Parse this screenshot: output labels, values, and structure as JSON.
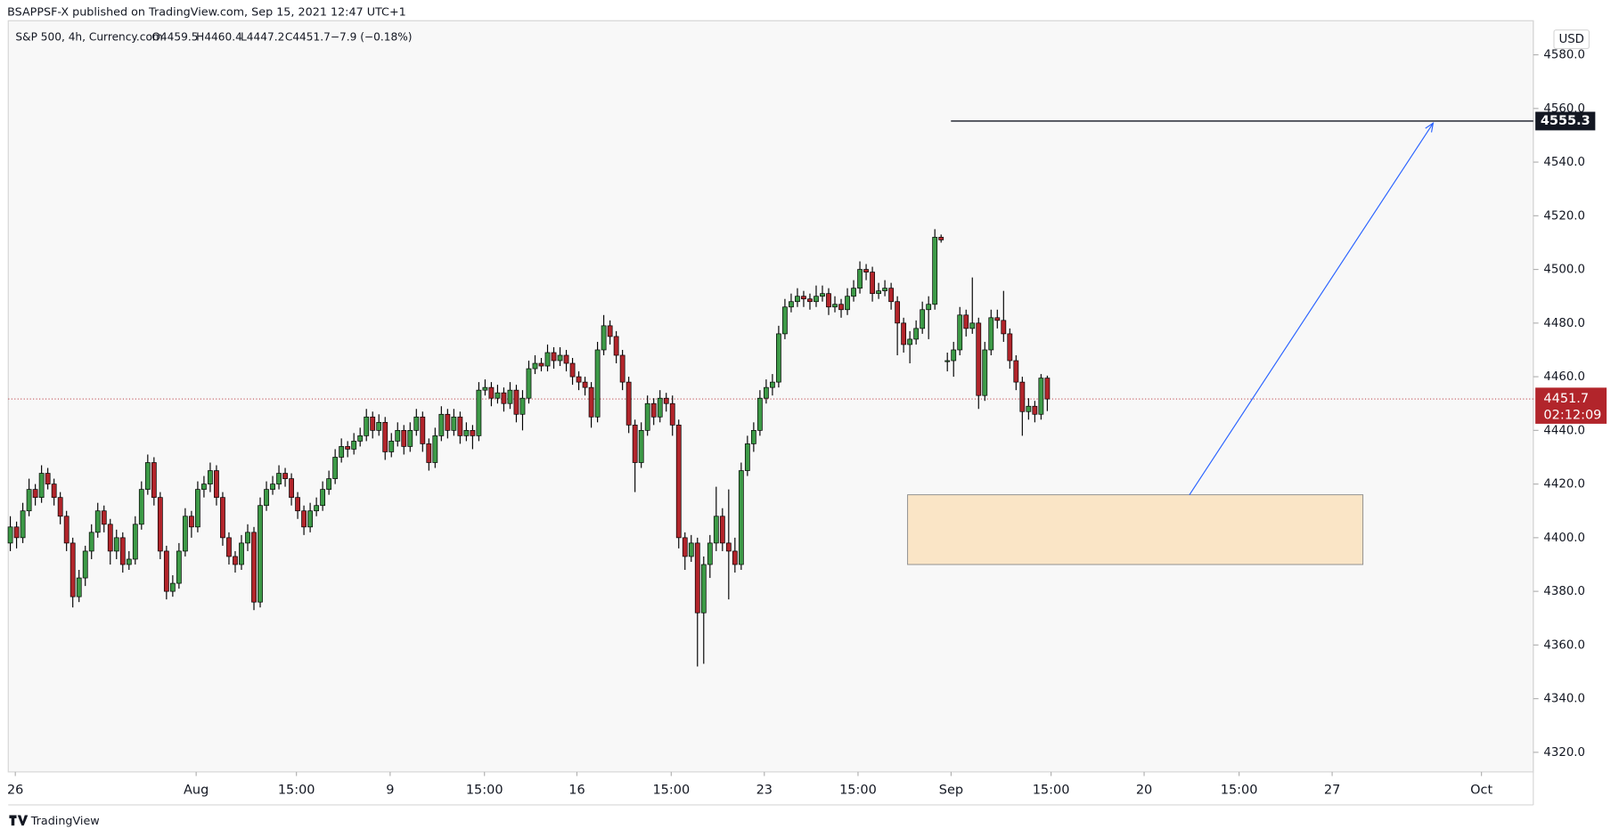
{
  "header": {
    "text": "BSAPPSF-X published on TradingView.com, Sep 15, 2021 12:47 UTC+1"
  },
  "footer": {
    "brand": "TradingView"
  },
  "chart_data": {
    "type": "candlestick",
    "symbol": "S&P 500, 4h, Currency.com",
    "open_label": "O4459.5",
    "high_label": "H4460.4",
    "low_label": "L4447.2",
    "close_label": "C4451.7",
    "change_label": "−7.9 (−0.18%)",
    "currency": "USD",
    "countdown": "02:12:09",
    "last_price": 4451.7,
    "target": 4555.3,
    "zone": {
      "high": 4416,
      "low": 4390
    },
    "up_color": "#3d9a47",
    "down_color": "#b2252b",
    "zone_color": "#fae5c6",
    "arrow_color": "#2962ff",
    "ylim": [
      4312.7,
      4592.7
    ],
    "yticks": [
      {
        "value": 4320,
        "label": "4320.0"
      },
      {
        "value": 4340,
        "label": "4340.0"
      },
      {
        "value": 4360,
        "label": "4360.0"
      },
      {
        "value": 4380,
        "label": "4380.0"
      },
      {
        "value": 4400,
        "label": "4400.0"
      },
      {
        "value": 4420,
        "label": "4420.0"
      },
      {
        "value": 4440,
        "label": "4440.0"
      },
      {
        "value": 4460,
        "label": "4460.0"
      },
      {
        "value": 4480,
        "label": "4480.0"
      },
      {
        "value": 4500,
        "label": "4500.0"
      },
      {
        "value": 4520,
        "label": "4520.0"
      },
      {
        "value": 4540,
        "label": "4540.0"
      },
      {
        "value": 4560,
        "label": "4560.0"
      },
      {
        "value": 4580,
        "label": "4580.0"
      }
    ],
    "xlim": [
      -0.33,
      243.8
    ],
    "xticks": [
      {
        "value": 0.8,
        "label": "26"
      },
      {
        "value": 29.75,
        "label": "Aug"
      },
      {
        "value": 45.8,
        "label": "15:00"
      },
      {
        "value": 60.8,
        "label": "9"
      },
      {
        "value": 75.9,
        "label": "15:00"
      },
      {
        "value": 90.7,
        "label": "16"
      },
      {
        "value": 105.8,
        "label": "15:00"
      },
      {
        "value": 120.7,
        "label": "23"
      },
      {
        "value": 135.7,
        "label": "15:00"
      },
      {
        "value": 150.6,
        "label": "Sep"
      },
      {
        "value": 166.6,
        "label": "15:00"
      },
      {
        "value": 181.5,
        "label": "20"
      },
      {
        "value": 196.7,
        "label": "15:00"
      },
      {
        "value": 211.6,
        "label": "27"
      },
      {
        "value": 235.5,
        "label": "Oct"
      }
    ],
    "candles": [
      [
        4398,
        4408,
        4395,
        4404
      ],
      [
        4404,
        4406,
        4396,
        4400
      ],
      [
        4400,
        4413,
        4398,
        4410
      ],
      [
        4410,
        4422,
        4408,
        4418
      ],
      [
        4418,
        4420,
        4412,
        4415
      ],
      [
        4415,
        4427,
        4413,
        4424
      ],
      [
        4424,
        4426,
        4418,
        4420
      ],
      [
        4420,
        4422,
        4412,
        4415
      ],
      [
        4415,
        4417,
        4405,
        4408
      ],
      [
        4408,
        4410,
        4395,
        4398
      ],
      [
        4398,
        4400,
        4374,
        4378
      ],
      [
        4378,
        4388,
        4376,
        4385
      ],
      [
        4385,
        4397,
        4382,
        4395
      ],
      [
        4395,
        4405,
        4392,
        4402
      ],
      [
        4402,
        4413,
        4400,
        4410
      ],
      [
        4410,
        4412,
        4402,
        4405
      ],
      [
        4405,
        4407,
        4390,
        4395
      ],
      [
        4395,
        4403,
        4392,
        4400
      ],
      [
        4400,
        4402,
        4387,
        4390
      ],
      [
        4390,
        4395,
        4388,
        4392
      ],
      [
        4392,
        4408,
        4390,
        4405
      ],
      [
        4405,
        4421,
        4403,
        4418
      ],
      [
        4418,
        4431,
        4416,
        4428
      ],
      [
        4428,
        4430,
        4412,
        4415
      ],
      [
        4415,
        4417,
        4392,
        4395
      ],
      [
        4395,
        4397,
        4377,
        4380
      ],
      [
        4380,
        4386,
        4378,
        4383
      ],
      [
        4383,
        4398,
        4381,
        4395
      ],
      [
        4395,
        4411,
        4393,
        4408
      ],
      [
        4408,
        4410,
        4400,
        4404
      ],
      [
        4404,
        4421,
        4402,
        4418
      ],
      [
        4418,
        4423,
        4415,
        4420
      ],
      [
        4420,
        4428,
        4417,
        4425
      ],
      [
        4425,
        4427,
        4412,
        4415
      ],
      [
        4415,
        4417,
        4397,
        4400
      ],
      [
        4400,
        4402,
        4390,
        4393
      ],
      [
        4393,
        4395,
        4387,
        4390
      ],
      [
        4390,
        4401,
        4388,
        4398
      ],
      [
        4398,
        4405,
        4395,
        4402
      ],
      [
        4402,
        4404,
        4373,
        4376
      ],
      [
        4376,
        4415,
        4374,
        4412
      ],
      [
        4412,
        4421,
        4410,
        4418
      ],
      [
        4418,
        4423,
        4416,
        4420
      ],
      [
        4420,
        4427,
        4418,
        4424
      ],
      [
        4424,
        4426,
        4419,
        4422
      ],
      [
        4422,
        4424,
        4412,
        4415
      ],
      [
        4415,
        4417,
        4407,
        4410
      ],
      [
        4410,
        4412,
        4401,
        4404
      ],
      [
        4404,
        4413,
        4402,
        4410
      ],
      [
        4410,
        4415,
        4408,
        4412
      ],
      [
        4412,
        4421,
        4410,
        4418
      ],
      [
        4418,
        4425,
        4416,
        4422
      ],
      [
        4422,
        4433,
        4420,
        4430
      ],
      [
        4430,
        4437,
        4428,
        4434
      ],
      [
        4434,
        4436,
        4430,
        4433
      ],
      [
        4433,
        4439,
        4431,
        4436
      ],
      [
        4436,
        4441,
        4434,
        4438
      ],
      [
        4438,
        4448,
        4436,
        4445
      ],
      [
        4445,
        4447,
        4437,
        4440
      ],
      [
        4440,
        4446,
        4438,
        4443
      ],
      [
        4443,
        4445,
        4429,
        4432
      ],
      [
        4432,
        4439,
        4430,
        4436
      ],
      [
        4436,
        4443,
        4434,
        4440
      ],
      [
        4440,
        4442,
        4431,
        4434
      ],
      [
        4434,
        4443,
        4432,
        4440
      ],
      [
        4440,
        4448,
        4438,
        4445
      ],
      [
        4445,
        4447,
        4432,
        4435
      ],
      [
        4435,
        4437,
        4425,
        4428
      ],
      [
        4428,
        4441,
        4426,
        4438
      ],
      [
        4438,
        4449,
        4436,
        4446
      ],
      [
        4446,
        4448,
        4437,
        4440
      ],
      [
        4440,
        4448,
        4438,
        4445
      ],
      [
        4445,
        4447,
        4435,
        4438
      ],
      [
        4438,
        4443,
        4436,
        4440
      ],
      [
        4440,
        4442,
        4433,
        4438
      ],
      [
        4438,
        4458,
        4436,
        4455
      ],
      [
        4455,
        4459,
        4453,
        4456
      ],
      [
        4456,
        4458,
        4449,
        4452
      ],
      [
        4452,
        4457,
        4450,
        4454
      ],
      [
        4454,
        4456,
        4447,
        4450
      ],
      [
        4450,
        4458,
        4448,
        4455
      ],
      [
        4455,
        4457,
        4443,
        4446
      ],
      [
        4446,
        4455,
        4440,
        4452
      ],
      [
        4452,
        4466,
        4450,
        4463
      ],
      [
        4463,
        4468,
        4461,
        4465
      ],
      [
        4465,
        4467,
        4462,
        4464
      ],
      [
        4464,
        4472,
        4462,
        4469
      ],
      [
        4469,
        4471,
        4463,
        4466
      ],
      [
        4466,
        4471,
        4464,
        4468
      ],
      [
        4468,
        4470,
        4462,
        4465
      ],
      [
        4465,
        4467,
        4457,
        4460
      ],
      [
        4460,
        4462,
        4455,
        4458
      ],
      [
        4458,
        4460,
        4453,
        4456
      ],
      [
        4456,
        4458,
        4441,
        4445
      ],
      [
        4445,
        4473,
        4443,
        4470
      ],
      [
        4470,
        4483,
        4468,
        4479
      ],
      [
        4479,
        4481,
        4472,
        4475
      ],
      [
        4475,
        4477,
        4465,
        4468
      ],
      [
        4468,
        4470,
        4455,
        4458
      ],
      [
        4458,
        4460,
        4439,
        4442
      ],
      [
        4442,
        4444,
        4417,
        4428
      ],
      [
        4428,
        4443,
        4426,
        4440
      ],
      [
        4440,
        4453,
        4438,
        4450
      ],
      [
        4450,
        4452,
        4442,
        4445
      ],
      [
        4445,
        4455,
        4443,
        4452
      ],
      [
        4452,
        4454,
        4447,
        4450
      ],
      [
        4450,
        4453,
        4438,
        4442
      ],
      [
        4442,
        4444,
        4396,
        4400
      ],
      [
        4400,
        4402,
        4388,
        4393
      ],
      [
        4393,
        4401,
        4391,
        4398
      ],
      [
        4398,
        4400,
        4352,
        4372
      ],
      [
        4372,
        4393,
        4353,
        4390
      ],
      [
        4390,
        4401,
        4385,
        4398
      ],
      [
        4398,
        4419,
        4395,
        4408
      ],
      [
        4408,
        4411,
        4395,
        4398
      ],
      [
        4398,
        4418,
        4377,
        4395
      ],
      [
        4395,
        4400,
        4387,
        4390
      ],
      [
        4390,
        4428,
        4388,
        4425
      ],
      [
        4425,
        4438,
        4423,
        4435
      ],
      [
        4435,
        4443,
        4432,
        4440
      ],
      [
        4440,
        4455,
        4438,
        4452
      ],
      [
        4452,
        4459,
        4450,
        4456
      ],
      [
        4456,
        4461,
        4453,
        4458
      ],
      [
        4458,
        4479,
        4456,
        4476
      ],
      [
        4476,
        4489,
        4474,
        4486
      ],
      [
        4486,
        4491,
        4484,
        4488
      ],
      [
        4488,
        4493,
        4486,
        4490
      ],
      [
        4490,
        4492,
        4486,
        4489
      ],
      [
        4489,
        4491,
        4485,
        4488
      ],
      [
        4488,
        4494,
        4486,
        4490
      ],
      [
        4490,
        4494,
        4488,
        4491
      ],
      [
        4491,
        4493,
        4483,
        4486
      ],
      [
        4486,
        4490,
        4484,
        4487
      ],
      [
        4487,
        4489,
        4482,
        4485
      ],
      [
        4485,
        4493,
        4483,
        4490
      ],
      [
        4490,
        4496,
        4488,
        4493
      ],
      [
        4493,
        4503,
        4491,
        4500
      ],
      [
        4500,
        4502,
        4496,
        4499
      ],
      [
        4499,
        4501,
        4488,
        4491
      ],
      [
        4491,
        4495,
        4489,
        4492
      ],
      [
        4492,
        4496,
        4490,
        4493
      ],
      [
        4493,
        4495,
        4485,
        4488
      ],
      [
        4488,
        4490,
        4468,
        4480
      ],
      [
        4480,
        4482,
        4469,
        4472
      ],
      [
        4472,
        4477,
        4465,
        4474
      ],
      [
        4474,
        4481,
        4472,
        4478
      ],
      [
        4478,
        4488,
        4476,
        4485
      ],
      [
        4485,
        4490,
        4474,
        4487
      ],
      [
        4487,
        4515,
        4485,
        4512
      ],
      [
        4512,
        4513,
        4510,
        4511
      ],
      [
        4466,
        4469,
        4462,
        4466
      ],
      [
        4466,
        4473,
        4460,
        4470
      ],
      [
        4470,
        4486,
        4468,
        4483
      ],
      [
        4483,
        4485,
        4475,
        4478
      ],
      [
        4478,
        4497,
        4476,
        4480
      ],
      [
        4480,
        4482,
        4448,
        4453
      ],
      [
        4453,
        4473,
        4451,
        4470
      ],
      [
        4470,
        4485,
        4468,
        4482
      ],
      [
        4482,
        4485,
        4478,
        4481
      ],
      [
        4481,
        4492,
        4473,
        4476
      ],
      [
        4476,
        4478,
        4463,
        4466
      ],
      [
        4466,
        4468,
        4455,
        4458
      ],
      [
        4458,
        4460,
        4438,
        4447
      ],
      [
        4447,
        4452,
        4444,
        4449
      ],
      [
        4449,
        4451,
        4443,
        4446
      ],
      [
        4446,
        4461,
        4444,
        4459.5
      ],
      [
        4459.5,
        4460.4,
        4447.2,
        4451.7
      ]
    ]
  }
}
